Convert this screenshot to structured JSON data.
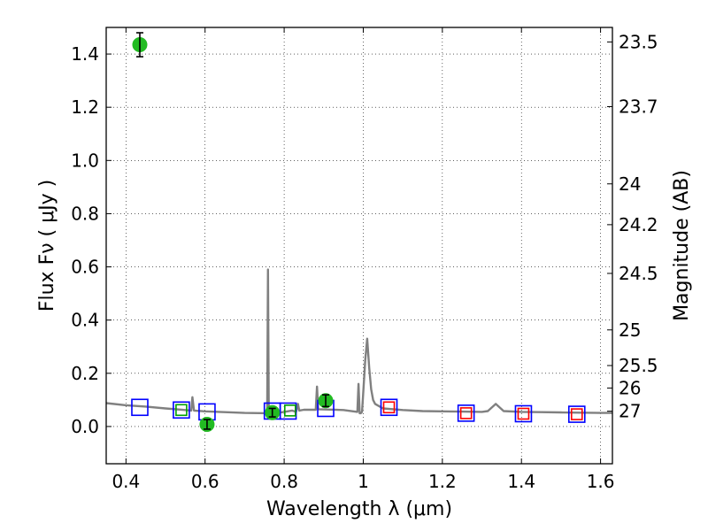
{
  "chart_data": {
    "type": "scatter",
    "title": "",
    "xlabel": "Wavelength  λ (μm)",
    "ylabel": "Flux  Fν  ( μJy )",
    "y2label": "Magnitude (AB)",
    "xlim": [
      0.35,
      1.63
    ],
    "ylim": [
      -0.14,
      1.5
    ],
    "grid": true,
    "xticks": [
      "0.4",
      "0.6",
      "0.8",
      "1",
      "1.2",
      "1.4",
      "1.6"
    ],
    "xtick_values": [
      0.4,
      0.6,
      0.8,
      1.0,
      1.2,
      1.4,
      1.6
    ],
    "yticks": [
      "0.0",
      "0.2",
      "0.4",
      "0.6",
      "0.8",
      "1.0",
      "1.2",
      "1.4"
    ],
    "ytick_values": [
      0.0,
      0.2,
      0.4,
      0.6,
      0.8,
      1.0,
      1.2,
      1.4
    ],
    "y2ticks": [
      "23.5",
      "23.7",
      "24",
      "24.2",
      "24.5",
      "25",
      "25.5",
      "26",
      "27"
    ],
    "y2tick_values": [
      23.5,
      23.7,
      24.0,
      24.2,
      24.5,
      25.0,
      25.5,
      26.0,
      27.0
    ],
    "series": [
      {
        "kind": "line",
        "color": "#808080",
        "x": [
          0.35,
          0.4,
          0.45,
          0.5,
          0.55,
          0.565,
          0.568,
          0.572,
          0.6,
          0.65,
          0.7,
          0.757,
          0.759,
          0.761,
          0.763,
          0.766,
          0.8,
          0.82,
          0.83,
          0.835,
          0.838,
          0.85,
          0.88,
          0.883,
          0.886,
          0.95,
          0.985,
          0.988,
          0.991,
          0.994,
          0.997,
          1.0,
          1.005,
          1.01,
          1.015,
          1.02,
          1.025,
          1.03,
          1.05,
          1.1,
          1.15,
          1.2,
          1.25,
          1.3,
          1.315,
          1.335,
          1.355,
          1.4,
          1.45,
          1.5,
          1.55,
          1.6,
          1.63
        ],
        "y": [
          0.088,
          0.08,
          0.075,
          0.068,
          0.062,
          0.06,
          0.11,
          0.06,
          0.057,
          0.054,
          0.051,
          0.05,
          0.59,
          0.05,
          0.05,
          0.047,
          0.055,
          0.06,
          0.055,
          0.085,
          0.06,
          0.063,
          0.063,
          0.15,
          0.065,
          0.062,
          0.055,
          0.16,
          0.05,
          0.05,
          0.055,
          0.13,
          0.25,
          0.33,
          0.22,
          0.14,
          0.1,
          0.085,
          0.068,
          0.062,
          0.058,
          0.057,
          0.056,
          0.055,
          0.058,
          0.085,
          0.058,
          0.055,
          0.054,
          0.053,
          0.052,
          0.051,
          0.051
        ]
      },
      {
        "kind": "squares",
        "color": "#0000ff",
        "x": [
          0.435,
          0.54,
          0.605,
          0.77,
          0.81,
          0.905,
          1.065,
          1.26,
          1.405,
          1.54
        ],
        "y": [
          0.072,
          0.062,
          0.055,
          0.058,
          0.058,
          0.068,
          0.072,
          0.05,
          0.048,
          0.046
        ]
      },
      {
        "kind": "squares",
        "color": "#00a000",
        "x": [
          0.54,
          0.815
        ],
        "y": [
          0.062,
          0.06
        ]
      },
      {
        "kind": "squares",
        "color": "#ff0000",
        "x": [
          1.065,
          1.26,
          1.405,
          1.54
        ],
        "y": [
          0.072,
          0.05,
          0.048,
          0.046
        ]
      },
      {
        "kind": "errorbar-points",
        "color": "#22bb22",
        "x": [
          0.435,
          0.605,
          0.77,
          0.905
        ],
        "y": [
          1.435,
          0.008,
          0.052,
          0.097
        ],
        "err": [
          0.045,
          0.018,
          0.016,
          0.022
        ]
      }
    ]
  }
}
